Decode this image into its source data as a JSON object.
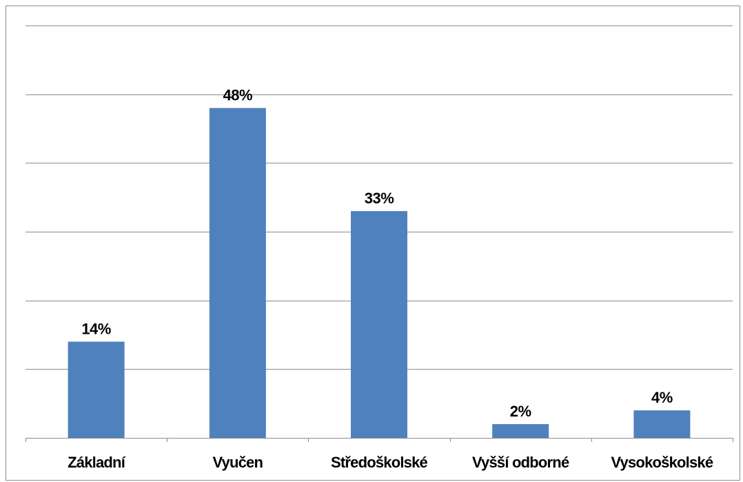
{
  "chart_data": {
    "type": "bar",
    "categories": [
      "Základní",
      "Vyučen",
      "Středoškolské",
      "Vyšší odborné",
      "Vysokoškolské"
    ],
    "values": [
      14,
      48,
      33,
      2,
      4
    ],
    "data_labels": [
      "14%",
      "48%",
      "33%",
      "2%",
      "4%"
    ],
    "unit": "%",
    "ylim": [
      0,
      60
    ],
    "y_gridlines": [
      10,
      20,
      30,
      40,
      50,
      60
    ],
    "grid": true,
    "legend": "none",
    "bar_color": "#4f81bd",
    "gridline_color": "#8c8c8c",
    "title": "",
    "xlabel": "",
    "ylabel": ""
  }
}
